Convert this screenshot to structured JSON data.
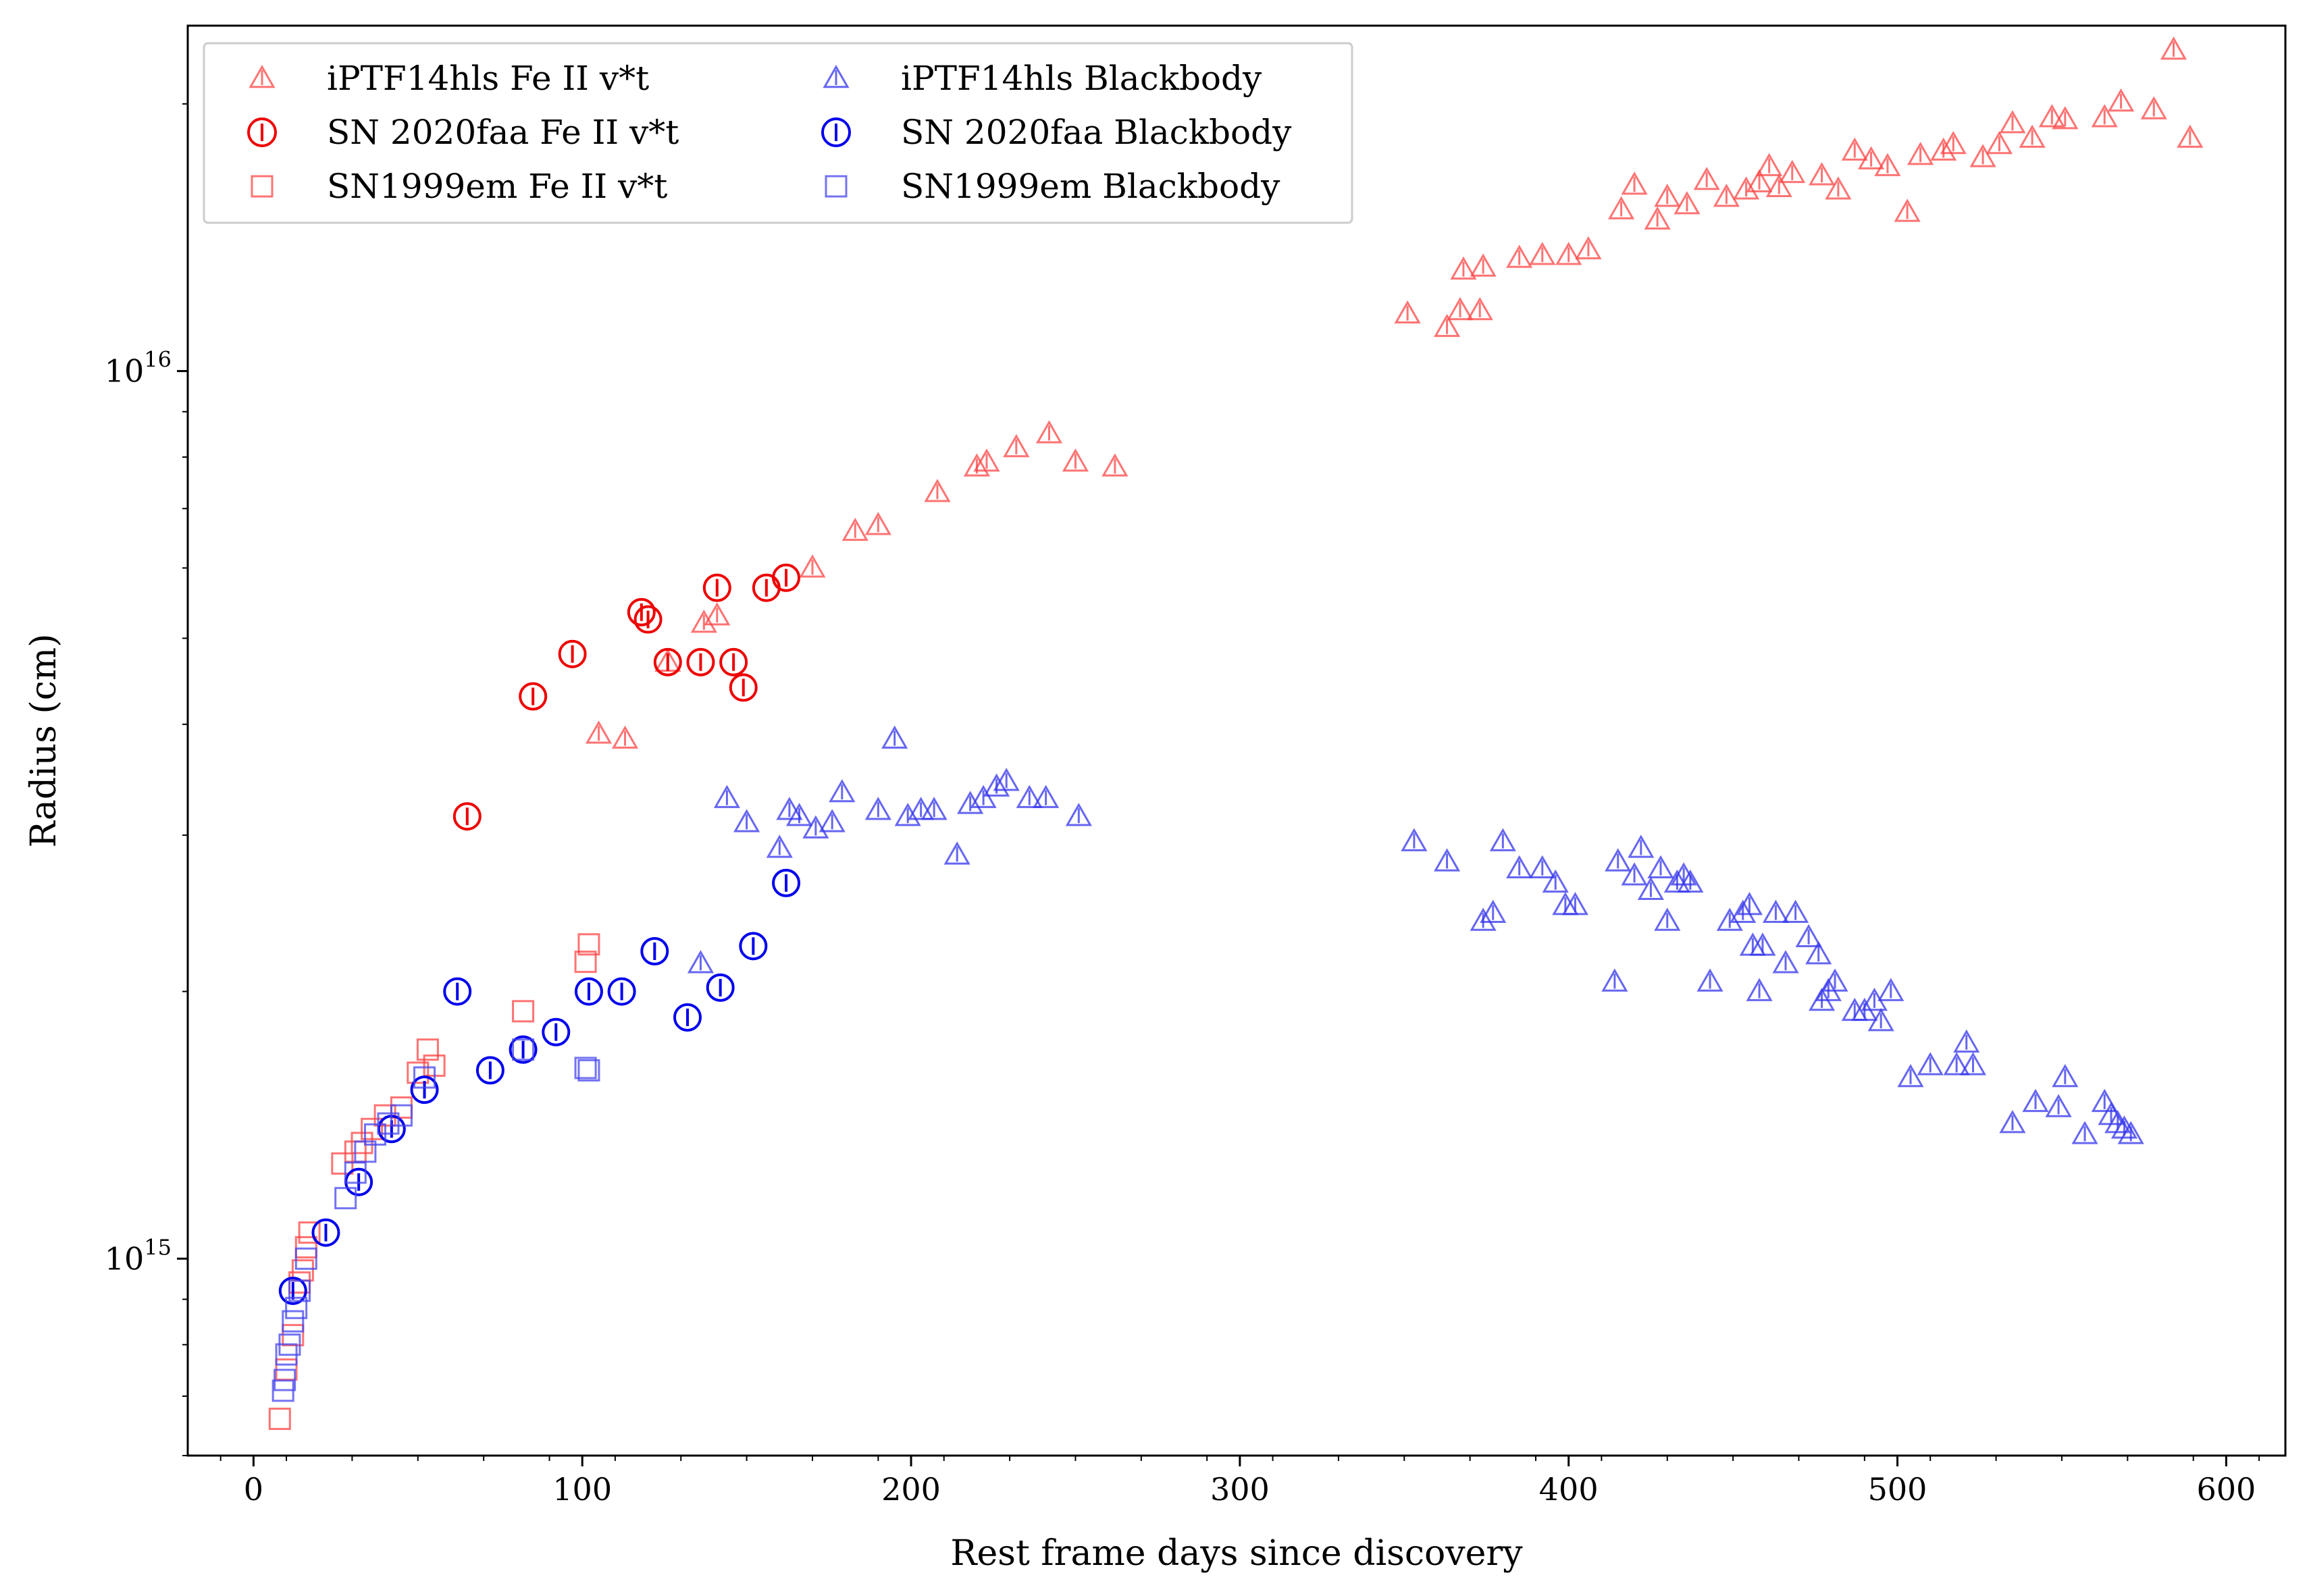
{
  "chart_data": {
    "type": "scatter",
    "title": "",
    "xlabel": "Rest frame days since discovery",
    "ylabel": "Radius (cm)",
    "xlim": [
      -20,
      618
    ],
    "ylim": [
      600000000000000.0,
      2.45e+16
    ],
    "yscale": "log",
    "x_ticks": [
      0,
      100,
      200,
      300,
      400,
      500,
      600
    ],
    "x_tick_labels": [
      "0",
      "100",
      "200",
      "300",
      "400",
      "500",
      "600"
    ],
    "y_ticks": [
      {
        "value": 1000000000000000.0,
        "base": "10",
        "exp": "15"
      },
      {
        "value": 1e+16,
        "base": "10",
        "exp": "16"
      }
    ],
    "legend_position": "top-left",
    "series": [
      {
        "name": "iPTF14hls Fe II v*t",
        "marker": "triangle",
        "color": "#ff4444",
        "points": [
          [
            105,
            3900000000000000.0
          ],
          [
            113,
            3850000000000000.0
          ],
          [
            126,
            4700000000000000.0
          ],
          [
            137,
            5200000000000000.0
          ],
          [
            141,
            5300000000000000.0
          ],
          [
            170,
            6000000000000000.0
          ],
          [
            183,
            6600000000000000.0
          ],
          [
            190,
            6700000000000000.0
          ],
          [
            208,
            7300000000000000.0
          ],
          [
            220,
            7800000000000000.0
          ],
          [
            223,
            7900000000000000.0
          ],
          [
            232,
            8200000000000000.0
          ],
          [
            242,
            8500000000000000.0
          ],
          [
            250,
            7900000000000000.0
          ],
          [
            262,
            7800000000000000.0
          ],
          [
            351,
            1.16e+16
          ],
          [
            363,
            1.12e+16
          ],
          [
            367,
            1.17e+16
          ],
          [
            368,
            1.3e+16
          ],
          [
            373,
            1.17e+16
          ],
          [
            374,
            1.31e+16
          ],
          [
            385,
            1.34e+16
          ],
          [
            392,
            1.35e+16
          ],
          [
            400,
            1.35e+16
          ],
          [
            406,
            1.37e+16
          ],
          [
            416,
            1.52e+16
          ],
          [
            420,
            1.62e+16
          ],
          [
            427,
            1.48e+16
          ],
          [
            430,
            1.57e+16
          ],
          [
            436,
            1.54e+16
          ],
          [
            442,
            1.64e+16
          ],
          [
            448,
            1.57e+16
          ],
          [
            454,
            1.6e+16
          ],
          [
            458,
            1.63e+16
          ],
          [
            461,
            1.7e+16
          ],
          [
            464,
            1.61e+16
          ],
          [
            468,
            1.67e+16
          ],
          [
            477,
            1.66e+16
          ],
          [
            482,
            1.6e+16
          ],
          [
            487,
            1.77e+16
          ],
          [
            492,
            1.73e+16
          ],
          [
            497,
            1.7e+16
          ],
          [
            503,
            1.51e+16
          ],
          [
            507,
            1.75e+16
          ],
          [
            514,
            1.77e+16
          ],
          [
            517,
            1.8e+16
          ],
          [
            526,
            1.74e+16
          ],
          [
            531,
            1.8e+16
          ],
          [
            535,
            1.9e+16
          ],
          [
            541,
            1.83e+16
          ],
          [
            547,
            1.93e+16
          ],
          [
            551,
            1.92e+16
          ],
          [
            563,
            1.93e+16
          ],
          [
            568,
            2.01e+16
          ],
          [
            578,
            1.97e+16
          ],
          [
            584,
            2.3e+16
          ],
          [
            589,
            1.83e+16
          ]
        ]
      },
      {
        "name": "SN 2020faa Fe II v*t",
        "marker": "circle",
        "color": "#ee0000",
        "points": [
          [
            65,
            3150000000000000.0
          ],
          [
            85,
            4300000000000000.0
          ],
          [
            97,
            4800000000000000.0
          ],
          [
            118,
            5350000000000000.0
          ],
          [
            120,
            5250000000000000.0
          ],
          [
            126,
            4700000000000000.0
          ],
          [
            136,
            4700000000000000.0
          ],
          [
            141,
            5700000000000000.0
          ],
          [
            146,
            4700000000000000.0
          ],
          [
            149,
            4400000000000000.0
          ],
          [
            156,
            5700000000000000.0
          ],
          [
            162,
            5850000000000000.0
          ]
        ]
      },
      {
        "name": "SN1999em Fe II v*t",
        "marker": "square",
        "color": "#ff4444",
        "points": [
          [
            8,
            660000000000000.0
          ],
          [
            10,
            750000000000000.0
          ],
          [
            12,
            820000000000000.0
          ],
          [
            14,
            940000000000000.0
          ],
          [
            15,
            970000000000000.0
          ],
          [
            16,
            1030000000000000.0
          ],
          [
            17,
            1070000000000000.0
          ],
          [
            27,
            1280000000000000.0
          ],
          [
            31,
            1320000000000000.0
          ],
          [
            33,
            1350000000000000.0
          ],
          [
            36,
            1400000000000000.0
          ],
          [
            40,
            1450000000000000.0
          ],
          [
            45,
            1480000000000000.0
          ],
          [
            50,
            1620000000000000.0
          ],
          [
            53,
            1720000000000000.0
          ],
          [
            55,
            1650000000000000.0
          ],
          [
            82,
            1900000000000000.0
          ],
          [
            101,
            2160000000000000.0
          ],
          [
            102,
            2260000000000000.0
          ]
        ]
      },
      {
        "name": "iPTF14hls Blackbody",
        "marker": "triangle",
        "color": "#3333ee",
        "points": [
          [
            136,
            2150000000000000.0
          ],
          [
            144,
            3300000000000000.0
          ],
          [
            150,
            3100000000000000.0
          ],
          [
            160,
            2900000000000000.0
          ],
          [
            163,
            3200000000000000.0
          ],
          [
            166,
            3150000000000000.0
          ],
          [
            171,
            3050000000000000.0
          ],
          [
            176,
            3100000000000000.0
          ],
          [
            179,
            3350000000000000.0
          ],
          [
            190,
            3200000000000000.0
          ],
          [
            195,
            3850000000000000.0
          ],
          [
            199,
            3150000000000000.0
          ],
          [
            203,
            3200000000000000.0
          ],
          [
            207,
            3200000000000000.0
          ],
          [
            214,
            2850000000000000.0
          ],
          [
            218,
            3250000000000000.0
          ],
          [
            222,
            3300000000000000.0
          ],
          [
            226,
            3400000000000000.0
          ],
          [
            229,
            3450000000000000.0
          ],
          [
            236,
            3300000000000000.0
          ],
          [
            241,
            3300000000000000.0
          ],
          [
            251,
            3150000000000000.0
          ],
          [
            353,
            2950000000000000.0
          ],
          [
            363,
            2800000000000000.0
          ],
          [
            374,
            2400000000000000.0
          ],
          [
            377,
            2450000000000000.0
          ],
          [
            380,
            2950000000000000.0
          ],
          [
            385,
            2750000000000000.0
          ],
          [
            392,
            2750000000000000.0
          ],
          [
            396,
            2650000000000000.0
          ],
          [
            399,
            2500000000000000.0
          ],
          [
            402,
            2500000000000000.0
          ],
          [
            414,
            2050000000000000.0
          ],
          [
            415,
            2800000000000000.0
          ],
          [
            420,
            2700000000000000.0
          ],
          [
            422,
            2900000000000000.0
          ],
          [
            425,
            2600000000000000.0
          ],
          [
            428,
            2750000000000000.0
          ],
          [
            430,
            2400000000000000.0
          ],
          [
            433,
            2650000000000000.0
          ],
          [
            435,
            2700000000000000.0
          ],
          [
            437,
            2650000000000000.0
          ],
          [
            443,
            2050000000000000.0
          ],
          [
            449,
            2400000000000000.0
          ],
          [
            453,
            2450000000000000.0
          ],
          [
            455,
            2500000000000000.0
          ],
          [
            456,
            2250000000000000.0
          ],
          [
            458,
            2000000000000000.0
          ],
          [
            459,
            2250000000000000.0
          ],
          [
            463,
            2450000000000000.0
          ],
          [
            466,
            2150000000000000.0
          ],
          [
            469,
            2450000000000000.0
          ],
          [
            473,
            2300000000000000.0
          ],
          [
            476,
            2200000000000000.0
          ],
          [
            477,
            1950000000000000.0
          ],
          [
            479,
            2000000000000000.0
          ],
          [
            481,
            2050000000000000.0
          ],
          [
            487,
            1900000000000000.0
          ],
          [
            490,
            1900000000000000.0
          ],
          [
            493,
            1950000000000000.0
          ],
          [
            495,
            1850000000000000.0
          ],
          [
            498,
            2000000000000000.0
          ],
          [
            504,
            1600000000000000.0
          ],
          [
            510,
            1650000000000000.0
          ],
          [
            518,
            1650000000000000.0
          ],
          [
            521,
            1750000000000000.0
          ],
          [
            523,
            1650000000000000.0
          ],
          [
            535,
            1420000000000000.0
          ],
          [
            542,
            1500000000000000.0
          ],
          [
            549,
            1480000000000000.0
          ],
          [
            551,
            1600000000000000.0
          ],
          [
            557,
            1380000000000000.0
          ],
          [
            563,
            1500000000000000.0
          ],
          [
            565,
            1450000000000000.0
          ],
          [
            567,
            1420000000000000.0
          ],
          [
            569,
            1400000000000000.0
          ],
          [
            571,
            1380000000000000.0
          ]
        ]
      },
      {
        "name": "SN 2020faa Blackbody",
        "marker": "circle",
        "color": "#0000ee",
        "points": [
          [
            12,
            920000000000000.0
          ],
          [
            22,
            1070000000000000.0
          ],
          [
            32,
            1220000000000000.0
          ],
          [
            42,
            1400000000000000.0
          ],
          [
            52,
            1550000000000000.0
          ],
          [
            62,
            2000000000000000.0
          ],
          [
            72,
            1630000000000000.0
          ],
          [
            82,
            1720000000000000.0
          ],
          [
            92,
            1800000000000000.0
          ],
          [
            102,
            2000000000000000.0
          ],
          [
            112,
            2000000000000000.0
          ],
          [
            122,
            2220000000000000.0
          ],
          [
            132,
            1870000000000000.0
          ],
          [
            142,
            2020000000000000.0
          ],
          [
            152,
            2250000000000000.0
          ],
          [
            162,
            2650000000000000.0
          ]
        ]
      },
      {
        "name": "SN1999em Blackbody",
        "marker": "square",
        "color": "#4444ee",
        "points": [
          [
            9,
            710000000000000.0
          ],
          [
            9.5,
            730000000000000.0
          ],
          [
            10,
            780000000000000.0
          ],
          [
            11,
            800000000000000.0
          ],
          [
            12,
            850000000000000.0
          ],
          [
            13,
            880000000000000.0
          ],
          [
            14,
            920000000000000.0
          ],
          [
            16,
            1000000000000000.0
          ],
          [
            28,
            1170000000000000.0
          ],
          [
            31,
            1250000000000000.0
          ],
          [
            34,
            1320000000000000.0
          ],
          [
            37,
            1380000000000000.0
          ],
          [
            41,
            1420000000000000.0
          ],
          [
            45,
            1450000000000000.0
          ],
          [
            52,
            1600000000000000.0
          ],
          [
            82,
            1720000000000000.0
          ],
          [
            101,
            1640000000000000.0
          ],
          [
            102,
            1630000000000000.0
          ]
        ]
      }
    ]
  }
}
